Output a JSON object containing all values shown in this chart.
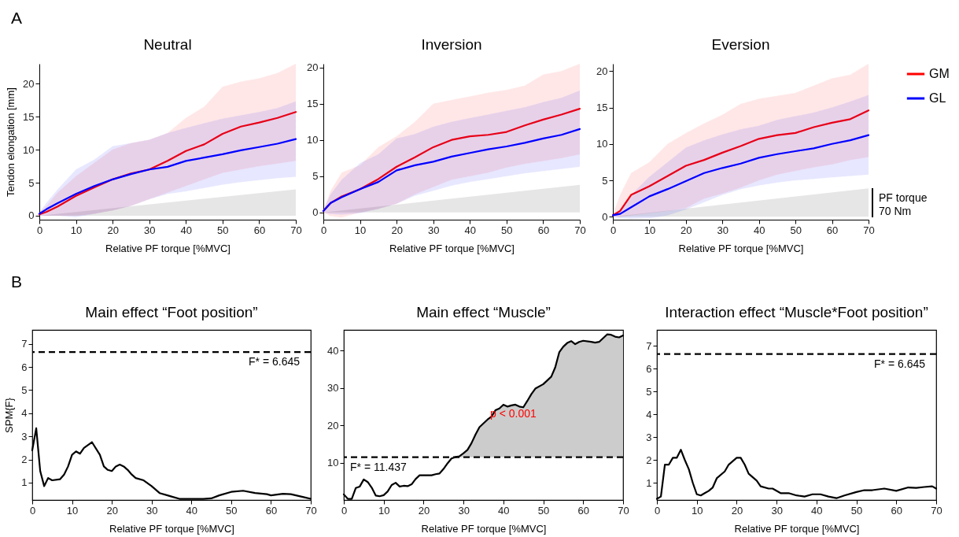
{
  "chart_data": [
    {
      "type": "line",
      "title": "Neutral",
      "xlabel": "Relative PF torque [%MVC]",
      "ylabel": "Tendon elongation [mm]",
      "annotations": [
        "A"
      ],
      "xlim": [
        0,
        70
      ],
      "ylim": [
        -0.6,
        23
      ],
      "xticks": [
        0,
        10,
        20,
        30,
        40,
        50,
        60,
        70
      ],
      "yticks": [
        0,
        5,
        10,
        15,
        20
      ],
      "grid": false,
      "marker": "none",
      "x": [
        0,
        2,
        5,
        10,
        15,
        20,
        25,
        30,
        35,
        40,
        45,
        50,
        55,
        60,
        65,
        70
      ],
      "series": [
        {
          "type": "area",
          "color": "#e6e6e6",
          "x": [
            0,
            70
          ],
          "values": [
            0,
            4.0
          ]
        },
        {
          "color": "#ff0000",
          "values": [
            0.2,
            0.6,
            1.4,
            3.0,
            4.3,
            5.5,
            6.4,
            7.0,
            8.3,
            9.8,
            10.8,
            12.4,
            13.5,
            14.1,
            14.8,
            15.7
          ],
          "lower": [
            0,
            0,
            0,
            0,
            0.3,
            0.8,
            1.5,
            2.5,
            3.5,
            4.5,
            5.5,
            6.5,
            7,
            7.5,
            7.9,
            8.3
          ],
          "upper": [
            0.5,
            1.5,
            3.5,
            6,
            8,
            10,
            11,
            11.5,
            12.5,
            14.8,
            16.5,
            19.5,
            20.3,
            20.8,
            21.6,
            23
          ]
        },
        {
          "color": "#0000ff",
          "values": [
            0.3,
            1.0,
            1.9,
            3.3,
            4.5,
            5.5,
            6.3,
            7.0,
            7.4,
            8.3,
            8.8,
            9.3,
            9.9,
            10.4,
            10.9,
            11.6
          ],
          "lower": [
            0,
            0,
            0,
            -0.2,
            0.3,
            0.8,
            1.5,
            2.5,
            3.3,
            3.7,
            4.2,
            4.7,
            5.1,
            5.4,
            5.7,
            5.9
          ],
          "upper": [
            0.5,
            2,
            4,
            7,
            8.5,
            10.5,
            11,
            11.5,
            12.5,
            13.3,
            14,
            14.7,
            15.2,
            15.7,
            16.3,
            17.3
          ]
        }
      ]
    },
    {
      "type": "line",
      "title": "Inversion",
      "xlabel": "Relative PF torque [%MVC]",
      "xlim": [
        0,
        70
      ],
      "ylim": [
        -1,
        20.5
      ],
      "xticks": [
        0,
        10,
        20,
        30,
        40,
        50,
        60,
        70
      ],
      "yticks": [
        0,
        5,
        10,
        15,
        20
      ],
      "grid": false,
      "marker": "none",
      "x": [
        0,
        2,
        5,
        10,
        15,
        20,
        25,
        30,
        35,
        40,
        45,
        50,
        55,
        60,
        65,
        70
      ],
      "series": [
        {
          "type": "area",
          "color": "#e6e6e6",
          "x": [
            0,
            70
          ],
          "values": [
            0,
            3.8
          ]
        },
        {
          "color": "#ff0000",
          "values": [
            0.2,
            1.3,
            2.2,
            3.2,
            4.6,
            6.3,
            7.6,
            9.0,
            10.0,
            10.5,
            10.7,
            11.1,
            12.0,
            12.8,
            13.5,
            14.3
          ],
          "lower": [
            0,
            -0.5,
            -0.7,
            0,
            0.5,
            1.2,
            2.5,
            3.5,
            4.5,
            5,
            5.5,
            6.2,
            6.7,
            7.1,
            7.5,
            8.0
          ],
          "upper": [
            0.3,
            3,
            5.5,
            6.5,
            9,
            10.5,
            12.5,
            15,
            15.5,
            16,
            16.5,
            16.9,
            17.5,
            19,
            19.5,
            20.5
          ]
        },
        {
          "color": "#0000ff",
          "values": [
            0.2,
            1.3,
            2.1,
            3.2,
            4.2,
            5.8,
            6.5,
            7.0,
            7.7,
            8.2,
            8.7,
            9.1,
            9.6,
            10.2,
            10.7,
            11.5
          ],
          "lower": [
            0,
            -0.2,
            -0.3,
            -0.1,
            0.5,
            1.2,
            2.3,
            3,
            3.7,
            4.2,
            4.6,
            5,
            5.4,
            5.7,
            6,
            6.3
          ],
          "upper": [
            0.3,
            2.5,
            4.5,
            6.8,
            8,
            10.2,
            10.8,
            11.8,
            12.5,
            13,
            13.5,
            14,
            14.5,
            15.2,
            15.8,
            16.8
          ]
        }
      ]
    },
    {
      "type": "line",
      "title": "Eversion",
      "xlabel": "Relative PF torque [%MVC]",
      "annotations": [
        "PF torque",
        "70 Nm"
      ],
      "xlim": [
        0,
        70
      ],
      "ylim": [
        -0.4,
        21
      ],
      "xticks": [
        0,
        10,
        20,
        30,
        40,
        50,
        60,
        70
      ],
      "yticks": [
        0,
        5,
        10,
        15,
        20
      ],
      "grid": false,
      "legend": "right",
      "marker": "none",
      "x": [
        0,
        2,
        5,
        10,
        15,
        20,
        25,
        30,
        35,
        40,
        45,
        50,
        55,
        60,
        65,
        70
      ],
      "series": [
        {
          "type": "area",
          "color": "#e6e6e6",
          "x": [
            0,
            70
          ],
          "values": [
            0,
            3.9
          ]
        },
        {
          "name": "GM",
          "color": "#ff0000",
          "values": [
            0.2,
            0.8,
            3.0,
            4.2,
            5.6,
            7.0,
            7.8,
            8.8,
            9.7,
            10.7,
            11.2,
            11.5,
            12.3,
            12.9,
            13.4,
            14.6
          ],
          "lower": [
            0,
            0,
            0.2,
            0.5,
            0.8,
            1.2,
            2.5,
            3.2,
            4,
            5,
            5.8,
            6.3,
            6.8,
            7.2,
            7.8,
            8.2
          ],
          "upper": [
            0.3,
            3,
            6,
            7.5,
            10,
            11.5,
            12.8,
            14,
            15.5,
            16.2,
            16.6,
            17,
            18,
            19,
            19.5,
            21
          ]
        },
        {
          "name": "GL",
          "color": "#0000ff",
          "values": [
            0.2,
            0.4,
            1.3,
            2.8,
            3.8,
            4.9,
            6.0,
            6.7,
            7.3,
            8.1,
            8.6,
            9.0,
            9.4,
            10.0,
            10.5,
            11.2
          ],
          "lower": [
            0,
            -0.2,
            -0.3,
            -0.2,
            0.2,
            1,
            2,
            3,
            3.8,
            4.3,
            4.7,
            5,
            5.2,
            5.4,
            5.6,
            5.8
          ],
          "upper": [
            0.3,
            1,
            3,
            5.5,
            7.5,
            9.5,
            10.5,
            11.3,
            12,
            12.5,
            13.3,
            13.8,
            14.3,
            15,
            15.8,
            16.7
          ]
        }
      ]
    },
    {
      "type": "line",
      "title": "Main effect “Foot position”",
      "xlabel": "Relative PF torque [%MVC]",
      "ylabel": "SPM{F}",
      "annotations": [
        "B"
      ],
      "xlim": [
        0,
        70
      ],
      "ylim": [
        0.25,
        7.6
      ],
      "xticks": [
        0,
        10,
        20,
        30,
        40,
        50,
        60,
        70
      ],
      "yticks": [
        1,
        2,
        3,
        4,
        5,
        6,
        7
      ],
      "grid": false,
      "marker": "none",
      "ref_lines": [
        {
          "axis": "y",
          "value": 6.645,
          "label": "F* = 6.645",
          "line_style": "dashed"
        }
      ],
      "series": [
        {
          "color": "#000000",
          "x": [
            0,
            1,
            2,
            3,
            4,
            5,
            7,
            8,
            9,
            10,
            11,
            12,
            13,
            15,
            17,
            18,
            19,
            20,
            21,
            22,
            23,
            24,
            25,
            26,
            28,
            30,
            32,
            34,
            35,
            37,
            40,
            43,
            45,
            47,
            50,
            53,
            56,
            59,
            60,
            63,
            65,
            68,
            70
          ],
          "values": [
            2.4,
            3.35,
            1.5,
            0.85,
            1.2,
            1.1,
            1.15,
            1.35,
            1.7,
            2.2,
            2.35,
            2.25,
            2.5,
            2.75,
            2.2,
            1.7,
            1.55,
            1.5,
            1.7,
            1.78,
            1.7,
            1.55,
            1.35,
            1.2,
            1.1,
            0.85,
            0.55,
            0.45,
            0.4,
            0.3,
            0.3,
            0.3,
            0.32,
            0.45,
            0.6,
            0.65,
            0.55,
            0.5,
            0.45,
            0.52,
            0.5,
            0.38,
            0.3
          ]
        }
      ]
    },
    {
      "type": "line",
      "title": "Main effect “Muscle”",
      "xlabel": "Relative PF torque [%MVC]",
      "annotations": [
        "p < 0.001"
      ],
      "xlim": [
        0,
        70
      ],
      "ylim": [
        0,
        45.5
      ],
      "xticks": [
        0,
        10,
        20,
        30,
        40,
        50,
        60,
        70
      ],
      "yticks": [
        10,
        20,
        30,
        40
      ],
      "grid": false,
      "marker": "none",
      "ref_lines": [
        {
          "axis": "y",
          "value": 11.437,
          "label": "F* = 11.437",
          "line_style": "dashed"
        }
      ],
      "series": [
        {
          "type": "area",
          "color": "#cccccc",
          "x": [
            28,
            29,
            30,
            31,
            32,
            33,
            34,
            35,
            36,
            37,
            38,
            39,
            40,
            41,
            42,
            43,
            44,
            45,
            46,
            47,
            48,
            50,
            52,
            53,
            54,
            55,
            56,
            57,
            58,
            59,
            60,
            62,
            63,
            64,
            65,
            66,
            67,
            68,
            69,
            70
          ],
          "values": [
            11.5,
            11.7,
            12.5,
            13.4,
            15.2,
            17.5,
            19.5,
            20.5,
            21.5,
            22.3,
            24,
            24.5,
            25.5,
            25,
            25.3,
            25.5,
            25,
            24.8,
            26.5,
            28.3,
            29.8,
            31,
            33,
            35.5,
            39.5,
            41,
            42,
            42.5,
            41.7,
            42.3,
            42.6,
            42.3,
            42.1,
            42.3,
            43.3,
            44.3,
            44.2,
            43.7,
            43.5,
            44
          ]
        },
        {
          "color": "#000000",
          "x": [
            0,
            1,
            2,
            3,
            4,
            5,
            6,
            7,
            8,
            9,
            10,
            11,
            12,
            13,
            14,
            15,
            16,
            17,
            18,
            19,
            21,
            22,
            23,
            24,
            25,
            26,
            27,
            28,
            29,
            30,
            31,
            32,
            33,
            34,
            35,
            36,
            37,
            38,
            39,
            40,
            41,
            42,
            43,
            44,
            45,
            46,
            47,
            48,
            50,
            52,
            53,
            54,
            55,
            56,
            57,
            58,
            59,
            60,
            62,
            63,
            64,
            65,
            66,
            67,
            68,
            69,
            70
          ],
          "values": [
            1.5,
            0.3,
            0.3,
            3.2,
            3.6,
            5.5,
            4.8,
            3.3,
            1.2,
            1,
            1.3,
            2.3,
            4,
            4.6,
            3.6,
            3.8,
            3.7,
            4.2,
            5.6,
            6.6,
            6.6,
            6.6,
            6.9,
            7.1,
            8.3,
            9.8,
            11.1,
            11.5,
            11.7,
            12.5,
            13.4,
            15.2,
            17.5,
            19.5,
            20.5,
            21.5,
            22.3,
            24,
            24.5,
            25.5,
            25,
            25.3,
            25.5,
            25,
            24.8,
            26.5,
            28.3,
            29.8,
            31,
            33,
            35.5,
            39.5,
            41,
            42,
            42.5,
            41.7,
            42.3,
            42.6,
            42.3,
            42.1,
            42.3,
            43.3,
            44.3,
            44.2,
            43.7,
            43.5,
            44
          ]
        }
      ]
    },
    {
      "type": "line",
      "title": "Interaction effect “Muscle*Foot position”",
      "xlabel": "Relative PF torque [%MVC]",
      "xlim": [
        0,
        70
      ],
      "ylim": [
        0.25,
        7.7
      ],
      "xticks": [
        0,
        10,
        20,
        30,
        40,
        50,
        60,
        70
      ],
      "yticks": [
        1,
        2,
        3,
        4,
        5,
        6,
        7
      ],
      "grid": false,
      "marker": "none",
      "ref_lines": [
        {
          "axis": "y",
          "value": 6.645,
          "label": "F* = 6.645",
          "line_style": "dashed"
        }
      ],
      "series": [
        {
          "color": "#000000",
          "x": [
            0,
            1,
            2,
            3,
            4,
            5,
            6,
            7,
            8,
            9,
            10,
            11,
            12,
            13,
            14,
            15,
            17,
            18,
            20,
            21,
            22,
            23,
            25,
            26,
            28,
            29,
            31,
            33,
            35,
            37,
            39,
            41,
            43,
            45,
            47,
            50,
            52,
            54,
            57,
            60,
            63,
            65,
            67,
            69,
            70
          ],
          "values": [
            0.3,
            0.4,
            1.8,
            1.8,
            2.1,
            2.1,
            2.45,
            2.0,
            1.6,
            1.0,
            0.5,
            0.45,
            0.55,
            0.65,
            0.8,
            1.2,
            1.5,
            1.8,
            2.1,
            2.1,
            1.8,
            1.4,
            1.1,
            0.85,
            0.75,
            0.75,
            0.55,
            0.55,
            0.45,
            0.4,
            0.5,
            0.5,
            0.4,
            0.33,
            0.45,
            0.6,
            0.68,
            0.68,
            0.75,
            0.65,
            0.8,
            0.78,
            0.82,
            0.85,
            0.75
          ]
        }
      ]
    }
  ]
}
